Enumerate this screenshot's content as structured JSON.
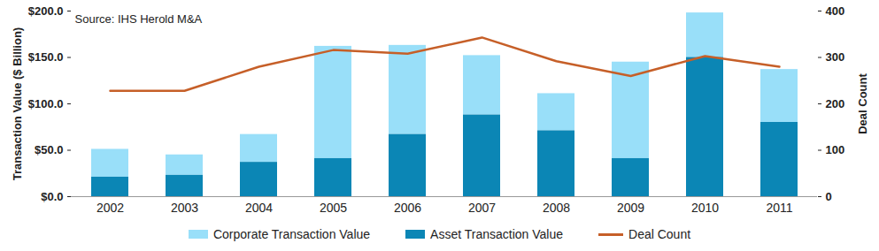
{
  "chart_data": {
    "type": "bar",
    "annotation": "Source: IHS Herold M&A",
    "y_label": "Transaction Value ($ Billion)",
    "y2_label": "Deal Count",
    "stacked": true,
    "legend": "bottom",
    "categories": [
      "2002",
      "2003",
      "2004",
      "2005",
      "2006",
      "2007",
      "2008",
      "2009",
      "2010",
      "2011"
    ],
    "series": [
      {
        "name": "Corporate Transaction Value",
        "color": "#99DFF9",
        "values": [
          30,
          22,
          30,
          121,
          96,
          64,
          40,
          104,
          48,
          57
        ]
      },
      {
        "name": "Asset Transaction Value",
        "color": "#0B86B5",
        "values": [
          21,
          23,
          37,
          41,
          67,
          88,
          71,
          41,
          150,
          80
        ]
      },
      {
        "name": "Deal Count",
        "type": "line",
        "axis": "y2",
        "color": "#C65F28",
        "values": [
          228,
          228,
          280,
          316,
          308,
          343,
          292,
          260,
          303,
          280
        ]
      }
    ],
    "ylim": [
      0,
      200
    ],
    "yticks": [
      {
        "value": 0,
        "label": "$0.0"
      },
      {
        "value": 50,
        "label": "$50.0"
      },
      {
        "value": 100,
        "label": "$100.0"
      },
      {
        "value": 150,
        "label": "$150.0"
      },
      {
        "value": 200,
        "label": "$200.0"
      }
    ],
    "y2lim": [
      0,
      400
    ],
    "y2ticks": [
      0,
      100,
      200,
      300,
      400
    ]
  }
}
